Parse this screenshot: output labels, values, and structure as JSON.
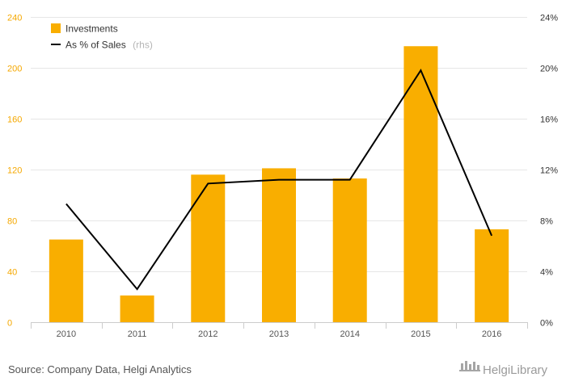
{
  "chart_data": {
    "type": "bar",
    "categories": [
      "2010",
      "2011",
      "2012",
      "2013",
      "2014",
      "2015",
      "2016"
    ],
    "series": [
      {
        "name": "Investments",
        "type": "bar",
        "axis": "left",
        "color": "#f9ae00",
        "values": [
          65,
          21,
          116,
          121,
          113,
          217,
          73
        ]
      },
      {
        "name": "As % of Sales",
        "name_suffix": "(rhs)",
        "type": "line",
        "axis": "right",
        "color": "#000000",
        "values": [
          9.3,
          2.6,
          10.9,
          11.2,
          11.2,
          19.8,
          6.8
        ]
      }
    ],
    "y_left": {
      "min": 0,
      "max": 240,
      "ticks": [
        "0",
        "40",
        "80",
        "120",
        "160",
        "200",
        "240"
      ],
      "color": "#f5a800"
    },
    "y_right": {
      "min": 0,
      "max": 24,
      "ticks": [
        "0%",
        "4%",
        "8%",
        "12%",
        "16%",
        "20%",
        "24%"
      ]
    },
    "grid": true,
    "legend_position": "top-left"
  },
  "footer": {
    "source": "Source: Company Data, Helgi Analytics",
    "logo_text": "HelgiLibrary"
  }
}
